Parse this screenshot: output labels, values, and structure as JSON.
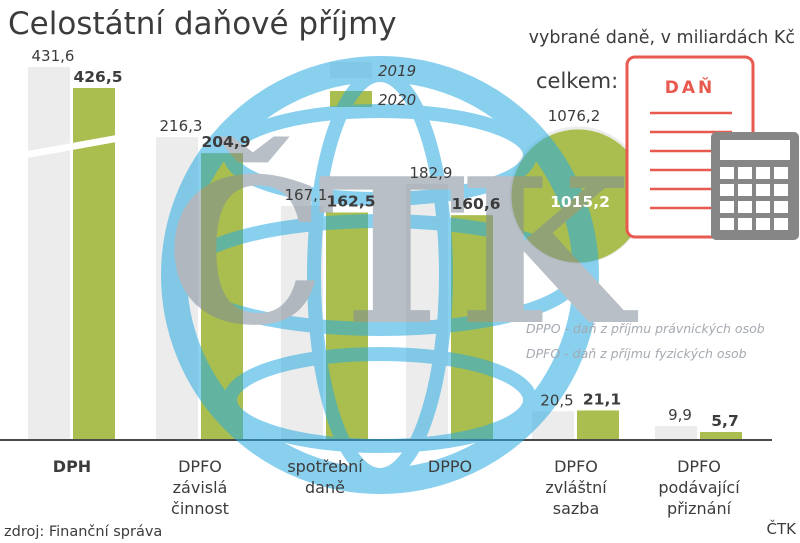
{
  "chart_data": {
    "type": "bar",
    "title": "Celostátní daňové příjmy",
    "subtitle": "vybrané daně, v miliardách Kč",
    "source": "zdroj: Finanční správa",
    "agency": "ČTK",
    "watermark": "ČTK",
    "legend": [
      "2019",
      "2020"
    ],
    "categories": [
      {
        "lines": [
          "DPH"
        ],
        "bold": true
      },
      {
        "lines": [
          "DPFO",
          "závislá",
          "činnost"
        ],
        "bold": false
      },
      {
        "lines": [
          "spotřební",
          "daně"
        ],
        "bold": false
      },
      {
        "lines": [
          "DPPO"
        ],
        "bold": false
      },
      {
        "lines": [
          "DPFO",
          "zvláštní",
          "sazba"
        ],
        "bold": false
      },
      {
        "lines": [
          "DPFO",
          "podávající",
          "přiznání"
        ],
        "bold": false
      }
    ],
    "series": [
      {
        "name": "2019",
        "values": [
          431.6,
          216.3,
          167.1,
          182.9,
          20.5,
          9.9
        ],
        "labels": [
          "431,6",
          "216,3",
          "167,1",
          "182,9",
          "20,5",
          "9,9"
        ]
      },
      {
        "name": "2020",
        "values": [
          426.5,
          204.9,
          162.5,
          160.6,
          21.1,
          5.7
        ],
        "labels": [
          "426,5",
          "204,9",
          "162,5",
          "160,6",
          "21,1",
          "5,7"
        ]
      }
    ],
    "broken_axis_category": "DPH",
    "total": {
      "label": "celkem:",
      "v2019": 1076.2,
      "v2020": 1015.2,
      "label2019": "1076,2",
      "label2020": "1015,2"
    },
    "notes": [
      "DPPO - daň z příjmu právnických osob",
      "DPFO - daň z příjmu fyzických osob"
    ],
    "illustration": {
      "document_title": "DAŇ"
    },
    "colors": {
      "c2019": "#ececec",
      "c2020": "#a9be4f",
      "text": "#3c3c3c",
      "axis": "#4a4a4a",
      "accent": "#e85a4f",
      "watermark_blue": "#29abe2",
      "watermark_grey": "#808c99"
    }
  }
}
